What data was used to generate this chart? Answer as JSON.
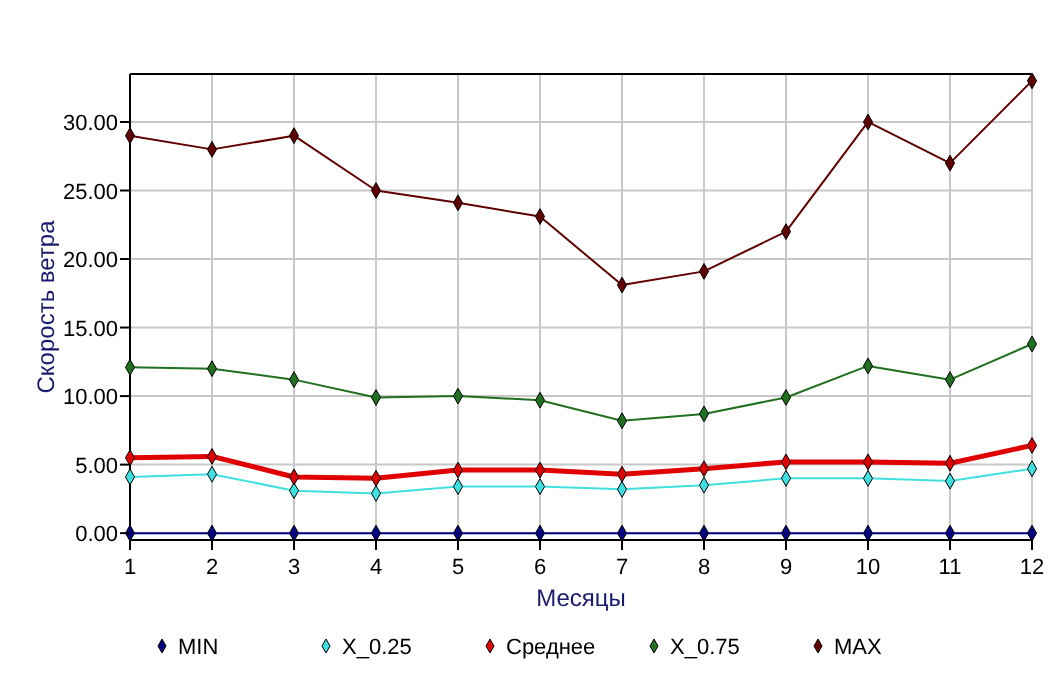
{
  "chart_data": {
    "type": "line",
    "xlabel": "Месяцы",
    "ylabel": "Скорость ветра",
    "x": [
      1,
      2,
      3,
      4,
      5,
      6,
      7,
      8,
      9,
      10,
      11,
      12
    ],
    "xlim": [
      1,
      12
    ],
    "xticks": [
      1,
      2,
      3,
      4,
      5,
      6,
      7,
      8,
      9,
      10,
      11,
      12
    ],
    "ylim": [
      -0.5,
      33.5
    ],
    "yticks": [
      {
        "value": 0,
        "label": "0.00"
      },
      {
        "value": 5,
        "label": "5.00"
      },
      {
        "value": 10,
        "label": "10.00"
      },
      {
        "value": 15,
        "label": "15.00"
      },
      {
        "value": 20,
        "label": "20.00"
      },
      {
        "value": 25,
        "label": "25.00"
      },
      {
        "value": 30,
        "label": "30.00"
      }
    ],
    "grid": true,
    "legend": "bottom",
    "marker": "diamond",
    "line_style": "solid",
    "series": [
      {
        "name": "MIN",
        "color": "#000080",
        "values": [
          0,
          0,
          0,
          0,
          0,
          0,
          0,
          0,
          0,
          0,
          0,
          0
        ]
      },
      {
        "name": "X_0.25",
        "color": "#40e0e0",
        "values": [
          4.1,
          4.3,
          3.1,
          2.9,
          3.4,
          3.4,
          3.2,
          3.5,
          4.0,
          4.0,
          3.8,
          4.7
        ]
      },
      {
        "name": "Среднее",
        "color": "#e00000",
        "values": [
          5.5,
          5.6,
          4.1,
          4.0,
          4.6,
          4.6,
          4.3,
          4.7,
          5.2,
          5.2,
          5.1,
          6.4
        ]
      },
      {
        "name": "X_0.75",
        "color": "#207020",
        "values": [
          12.1,
          12.0,
          11.2,
          9.9,
          10.0,
          9.7,
          8.2,
          8.7,
          9.9,
          12.2,
          11.2,
          13.8
        ]
      },
      {
        "name": "MAX",
        "color": "#600000",
        "values": [
          29,
          28,
          29,
          25,
          24.1,
          23.1,
          18.1,
          19.1,
          22,
          30,
          27,
          33
        ]
      }
    ]
  }
}
